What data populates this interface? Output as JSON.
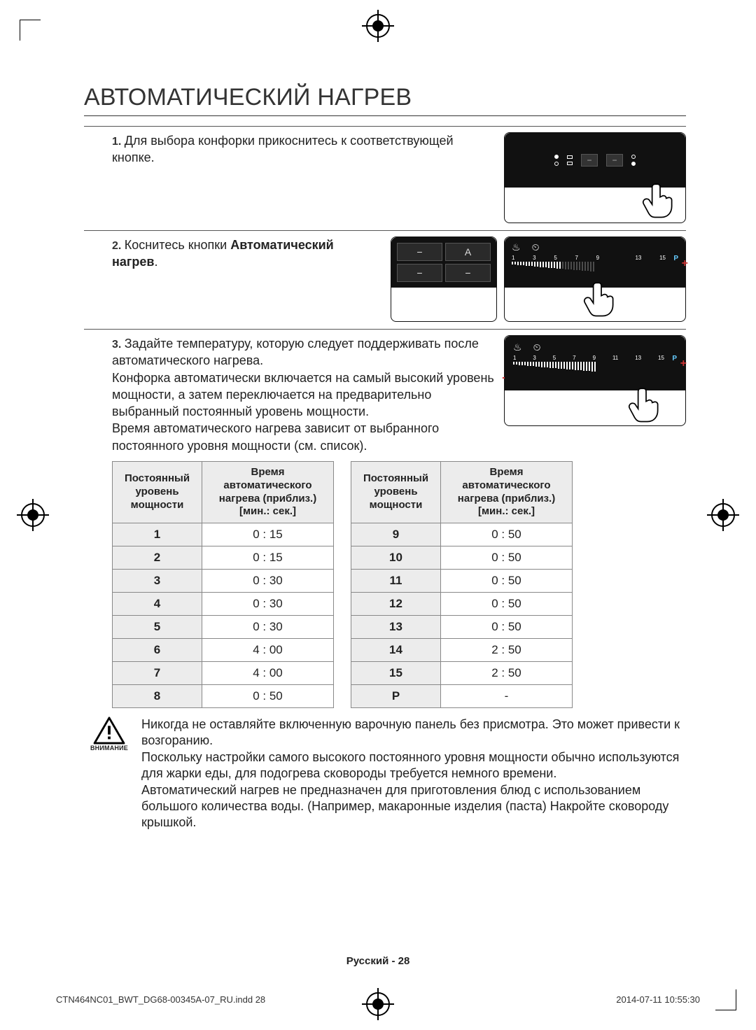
{
  "title": "АВТОМАТИЧЕСКИЙ НАГРЕВ",
  "steps": {
    "s1": {
      "num": "1.",
      "text": "Для выбора конфорки прикоснитесь к соответствующей кнопке."
    },
    "s2": {
      "num": "2.",
      "prefix": "Коснитесь кнопки ",
      "bold": "Автоматический нагрев",
      "suffix": "."
    },
    "s3": {
      "num": "3.",
      "text": "Задайте температуру, которую следует поддерживать после автоматического нагрева.\nКонфорка автоматически включается на самый высокий уровень мощности, а затем переключается на предварительно выбранный постоянный уровень мощности.\nВремя автоматического нагрева зависит от выбранного постоянного уровня мощности (см. список)."
    }
  },
  "fig2a_display": {
    "tl": "−",
    "tr": "A",
    "bl": "−",
    "br": "−"
  },
  "scale_numbers_a": [
    "1",
    "3",
    "5",
    "7",
    "9",
    "",
    "13",
    "15"
  ],
  "scale_numbers_b": [
    "1",
    "3",
    "5",
    "7",
    "9",
    "11",
    "13",
    "15"
  ],
  "scale_P": "P",
  "plus": "+",
  "minus": "−",
  "table_headers": {
    "col1": "Постоянный уровень мощности",
    "col2": "Время автоматического нагрева (приблиз.) [мин.: сек.]"
  },
  "table_left": [
    {
      "lvl": "1",
      "val": "0 : 15"
    },
    {
      "lvl": "2",
      "val": "0 : 15"
    },
    {
      "lvl": "3",
      "val": "0 : 30"
    },
    {
      "lvl": "4",
      "val": "0 : 30"
    },
    {
      "lvl": "5",
      "val": "0 : 30"
    },
    {
      "lvl": "6",
      "val": "4 : 00"
    },
    {
      "lvl": "7",
      "val": "4 : 00"
    },
    {
      "lvl": "8",
      "val": "0 : 50"
    }
  ],
  "table_right": [
    {
      "lvl": "9",
      "val": "0 : 50"
    },
    {
      "lvl": "10",
      "val": "0 : 50"
    },
    {
      "lvl": "11",
      "val": "0 : 50"
    },
    {
      "lvl": "12",
      "val": "0 : 50"
    },
    {
      "lvl": "13",
      "val": "0 : 50"
    },
    {
      "lvl": "14",
      "val": "2 : 50"
    },
    {
      "lvl": "15",
      "val": "2 : 50"
    },
    {
      "lvl": "P",
      "val": "-"
    }
  ],
  "warning": {
    "label": "ВНИМАНИЕ",
    "text": "Никогда не оставляйте включенную варочную панель без присмотра. Это может привести к возгоранию.\nПоскольку настройки самого высокого постоянного уровня мощности обычно используются для жарки еды, для подогрева сковороды требуется немного времени.\nАвтоматический нагрев не предназначен для приготовления блюд с использованием большого количества воды. (Например, макаронные изделия (паста) Накройте сковороду крышкой."
  },
  "footer_page": "Русский - 28",
  "print_footer": {
    "left": "CTN464NC01_BWT_DG68-00345A-07_RU.indd   28",
    "right": "2014-07-11     10:55:30"
  },
  "colors": {
    "text": "#222222",
    "rule": "#333333",
    "table_border": "#888888",
    "table_head_bg": "#ececec",
    "panel_bg": "#111111",
    "accent_red": "#cc3333",
    "accent_cyan": "#66ccff"
  }
}
